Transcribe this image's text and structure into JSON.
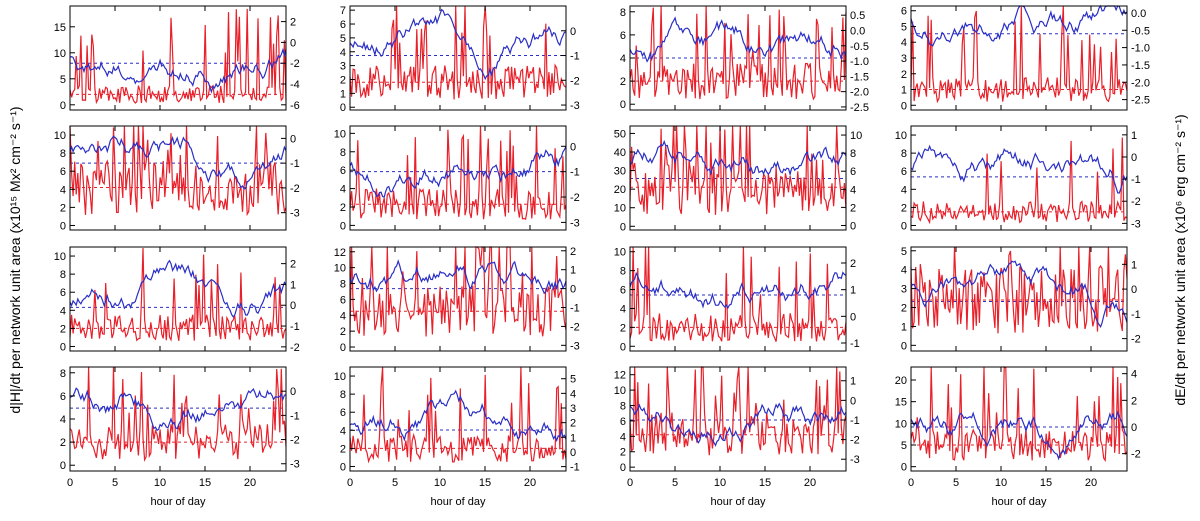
{
  "figure": {
    "left_ylabel": "d|H|/dt per network unit area (x10¹⁵ Mx² cm⁻² s⁻¹)",
    "right_ylabel": "dE/dt per network unit area (x10⁶ erg cm⁻² s⁻¹)",
    "xlabel": "hour of day"
  },
  "colors": {
    "red": "#e8202a",
    "blue": "#2a2fc6",
    "axis": "#000000"
  },
  "chart_data": [
    {
      "type": "line",
      "row": 0,
      "col": 0,
      "xlim": [
        0,
        24
      ],
      "xticks": [
        0,
        5,
        10,
        15,
        20
      ],
      "left_ylim": [
        -1,
        19
      ],
      "left_ticks": [
        0,
        5,
        10,
        15
      ],
      "right_ylim": [
        -6.5,
        3.5
      ],
      "right_ticks": [
        -6,
        -4,
        -2,
        0,
        2
      ],
      "red_mean": 2,
      "blue_mean": -2,
      "seed": 1
    },
    {
      "type": "line",
      "row": 0,
      "col": 1,
      "xlim": [
        0,
        24
      ],
      "xticks": [
        0,
        5,
        10,
        15,
        20
      ],
      "left_ylim": [
        -0.2,
        7.3
      ],
      "left_ticks": [
        0,
        1,
        2,
        3,
        4,
        5,
        6,
        7
      ],
      "right_ylim": [
        -3.2,
        1.0
      ],
      "right_ticks": [
        -3,
        -2,
        -1,
        0
      ],
      "red_mean": 1.8,
      "blue_mean": -1.0,
      "seed": 2
    },
    {
      "type": "line",
      "row": 0,
      "col": 2,
      "xlim": [
        0,
        24
      ],
      "xticks": [
        0,
        5,
        10,
        15,
        20
      ],
      "left_ylim": [
        -0.5,
        8.5
      ],
      "left_ticks": [
        0,
        2,
        4,
        6,
        8
      ],
      "right_ylim": [
        -2.6,
        0.8
      ],
      "right_ticks": [
        -2.5,
        -2.0,
        -1.5,
        -1.0,
        -0.5,
        0.0,
        0.5
      ],
      "red_mean": 2,
      "blue_mean": -0.9,
      "seed": 3
    },
    {
      "type": "line",
      "row": 0,
      "col": 3,
      "xlim": [
        0,
        24
      ],
      "xticks": [
        0,
        5,
        10,
        15,
        20
      ],
      "left_ylim": [
        -0.3,
        6.3
      ],
      "left_ticks": [
        0,
        1,
        2,
        3,
        4,
        5,
        6
      ],
      "right_ylim": [
        -2.8,
        0.2
      ],
      "right_ticks": [
        -2.5,
        -2.0,
        -1.5,
        -1.0,
        -0.5,
        0.0
      ],
      "red_mean": 1,
      "blue_mean": -0.6,
      "seed": 4
    },
    {
      "type": "line",
      "row": 1,
      "col": 0,
      "xlim": [
        0,
        24
      ],
      "xticks": [
        0,
        5,
        10,
        15,
        20
      ],
      "left_ylim": [
        -0.5,
        11
      ],
      "left_ticks": [
        0,
        2,
        4,
        6,
        8,
        10
      ],
      "right_ylim": [
        -3.7,
        0.5
      ],
      "right_ticks": [
        -3,
        -2,
        -1,
        0
      ],
      "red_mean": 4.2,
      "blue_mean": -1.0,
      "seed": 5
    },
    {
      "type": "line",
      "row": 1,
      "col": 1,
      "xlim": [
        0,
        24
      ],
      "xticks": [
        0,
        5,
        10,
        15,
        20
      ],
      "left_ylim": [
        -0.5,
        10.8
      ],
      "left_ticks": [
        0,
        2,
        4,
        6,
        8,
        10
      ],
      "right_ylim": [
        -3.3,
        0.8
      ],
      "right_ticks": [
        -3,
        -2,
        -1,
        0
      ],
      "red_mean": 2.3,
      "blue_mean": -1.0,
      "seed": 6
    },
    {
      "type": "line",
      "row": 1,
      "col": 2,
      "xlim": [
        0,
        24
      ],
      "xticks": [
        0,
        5,
        10,
        15,
        20
      ],
      "left_ylim": [
        -2,
        54
      ],
      "left_ticks": [
        0,
        10,
        20,
        30,
        40,
        50
      ],
      "right_ylim": [
        -0.5,
        11
      ],
      "right_ticks": [
        0,
        2,
        4,
        6,
        8,
        10
      ],
      "red_mean": 21,
      "blue_mean": 5.2,
      "seed": 7
    },
    {
      "type": "line",
      "row": 1,
      "col": 3,
      "xlim": [
        0,
        24
      ],
      "xticks": [
        0,
        5,
        10,
        15,
        20
      ],
      "left_ylim": [
        -0.5,
        11
      ],
      "left_ticks": [
        0,
        2,
        4,
        6,
        8,
        10
      ],
      "right_ylim": [
        -3.3,
        1.4
      ],
      "right_ticks": [
        -3,
        -2,
        -1,
        0,
        1
      ],
      "red_mean": 1.5,
      "blue_mean": -0.9,
      "seed": 8
    },
    {
      "type": "line",
      "row": 2,
      "col": 0,
      "xlim": [
        0,
        24
      ],
      "xticks": [
        0,
        5,
        10,
        15,
        20
      ],
      "left_ylim": [
        -0.5,
        11
      ],
      "left_ticks": [
        0,
        2,
        4,
        6,
        8,
        10
      ],
      "right_ylim": [
        -2.2,
        2.8
      ],
      "right_ticks": [
        -2,
        -1,
        0,
        1,
        2
      ],
      "red_mean": 2,
      "blue_mean": -0.1,
      "seed": 9
    },
    {
      "type": "line",
      "row": 2,
      "col": 1,
      "xlim": [
        0,
        24
      ],
      "xticks": [
        0,
        5,
        10,
        15,
        20
      ],
      "left_ylim": [
        -0.5,
        12.6
      ],
      "left_ticks": [
        0,
        2,
        4,
        6,
        8,
        10,
        12
      ],
      "right_ylim": [
        -3.3,
        2.2
      ],
      "right_ticks": [
        -3,
        -2,
        -1,
        0,
        1,
        2
      ],
      "red_mean": 4.5,
      "blue_mean": 0,
      "seed": 10
    },
    {
      "type": "line",
      "row": 2,
      "col": 2,
      "xlim": [
        0,
        24
      ],
      "xticks": [
        0,
        5,
        10,
        15,
        20
      ],
      "left_ylim": [
        -0.5,
        10.5
      ],
      "left_ticks": [
        0,
        2,
        4,
        6,
        8,
        10
      ],
      "right_ylim": [
        -1.3,
        2.6
      ],
      "right_ticks": [
        -1,
        0,
        1,
        2
      ],
      "red_mean": 2,
      "blue_mean": 0.8,
      "seed": 11
    },
    {
      "type": "line",
      "row": 2,
      "col": 3,
      "xlim": [
        0,
        24
      ],
      "xticks": [
        0,
        5,
        10,
        15,
        20
      ],
      "left_ylim": [
        -0.3,
        5.2
      ],
      "left_ticks": [
        0,
        1,
        2,
        3,
        4,
        5
      ],
      "right_ylim": [
        -2.5,
        1.7
      ],
      "right_ticks": [
        -2,
        -1,
        0,
        1
      ],
      "red_mean": 2.4,
      "blue_mean": -0.5,
      "seed": 12
    },
    {
      "type": "line",
      "row": 3,
      "col": 0,
      "xlim": [
        0,
        24
      ],
      "xticks": [
        0,
        5,
        10,
        15,
        20
      ],
      "left_ylim": [
        -0.5,
        8.5
      ],
      "left_ticks": [
        0,
        2,
        4,
        6,
        8
      ],
      "right_ylim": [
        -3.3,
        1.0
      ],
      "right_ticks": [
        -3,
        -2,
        -1,
        0
      ],
      "red_mean": 2,
      "blue_mean": -0.7,
      "seed": 13
    },
    {
      "type": "line",
      "row": 3,
      "col": 1,
      "xlim": [
        0,
        24
      ],
      "xticks": [
        0,
        5,
        10,
        15,
        20
      ],
      "left_ylim": [
        -0.5,
        11
      ],
      "left_ticks": [
        0,
        2,
        4,
        6,
        8,
        10
      ],
      "right_ylim": [
        -1.3,
        5.8
      ],
      "right_ticks": [
        -1,
        0,
        1,
        2,
        3,
        4,
        5
      ],
      "red_mean": 2,
      "blue_mean": 1.5,
      "seed": 14
    },
    {
      "type": "line",
      "row": 3,
      "col": 2,
      "xlim": [
        0,
        24
      ],
      "xticks": [
        0,
        5,
        10,
        15,
        20
      ],
      "left_ylim": [
        -0.5,
        13
      ],
      "left_ticks": [
        0,
        2,
        4,
        6,
        8,
        10,
        12
      ],
      "right_ylim": [
        -3.6,
        1.7
      ],
      "right_ticks": [
        -3,
        -2,
        -1,
        0,
        1
      ],
      "red_mean": 4.2,
      "blue_mean": -1.0,
      "seed": 15
    },
    {
      "type": "line",
      "row": 3,
      "col": 3,
      "xlim": [
        0,
        24
      ],
      "xticks": [
        0,
        5,
        10,
        15,
        20
      ],
      "left_ylim": [
        -1,
        23
      ],
      "left_ticks": [
        0,
        5,
        10,
        15,
        20
      ],
      "right_ylim": [
        -3.3,
        4.5
      ],
      "right_ticks": [
        -2,
        0,
        2,
        4
      ],
      "red_mean": 5,
      "blue_mean": 0,
      "seed": 16
    }
  ]
}
